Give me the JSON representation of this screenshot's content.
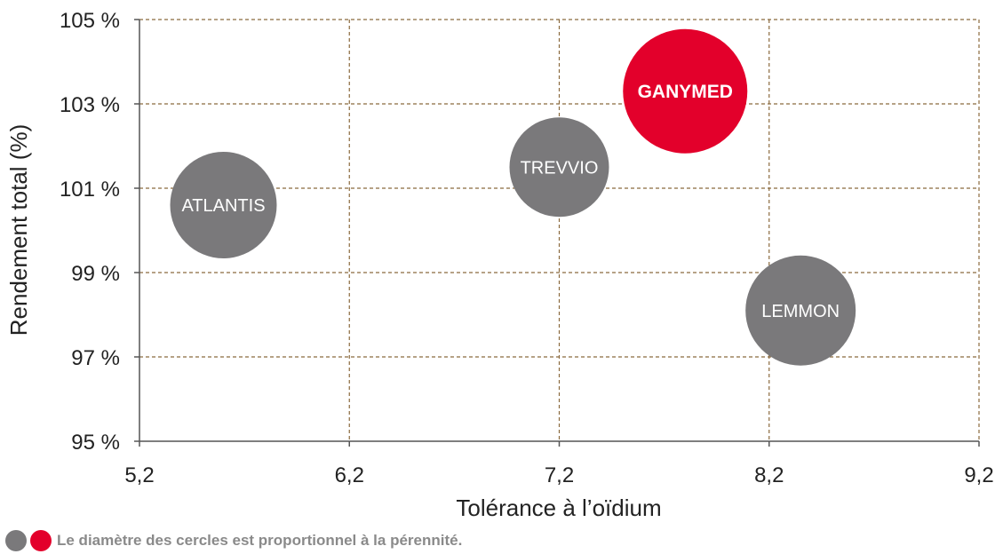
{
  "chart_data": {
    "type": "bubble",
    "xlabel": "Tolérance à l’oïdium",
    "ylabel": "Rendement total (%)",
    "xlim": [
      5.2,
      9.2
    ],
    "ylim": [
      95,
      105
    ],
    "x_ticks": [
      "5,2",
      "6,2",
      "7,2",
      "8,2",
      "9,2"
    ],
    "y_ticks": [
      "95 %",
      "97 %",
      "99 %",
      "101 %",
      "103 %",
      "105 %"
    ],
    "grid": true,
    "points": [
      {
        "label": "ATLANTIS",
        "x": 5.6,
        "y": 100.6,
        "size": 60,
        "color": "#7a797b",
        "highlight": false
      },
      {
        "label": "TREVVIO",
        "x": 7.2,
        "y": 101.5,
        "size": 56,
        "color": "#7a797b",
        "highlight": false
      },
      {
        "label": "GANYMED",
        "x": 7.8,
        "y": 103.3,
        "size": 70,
        "color": "#e3002b",
        "highlight": true
      },
      {
        "label": "LEMMON",
        "x": 8.35,
        "y": 98.1,
        "size": 62,
        "color": "#7a797b",
        "highlight": false
      }
    ],
    "legend_colors": [
      "#7a797b",
      "#e3002b"
    ],
    "note": "Le diamètre des cercles est proportionnel à la pérennité."
  }
}
